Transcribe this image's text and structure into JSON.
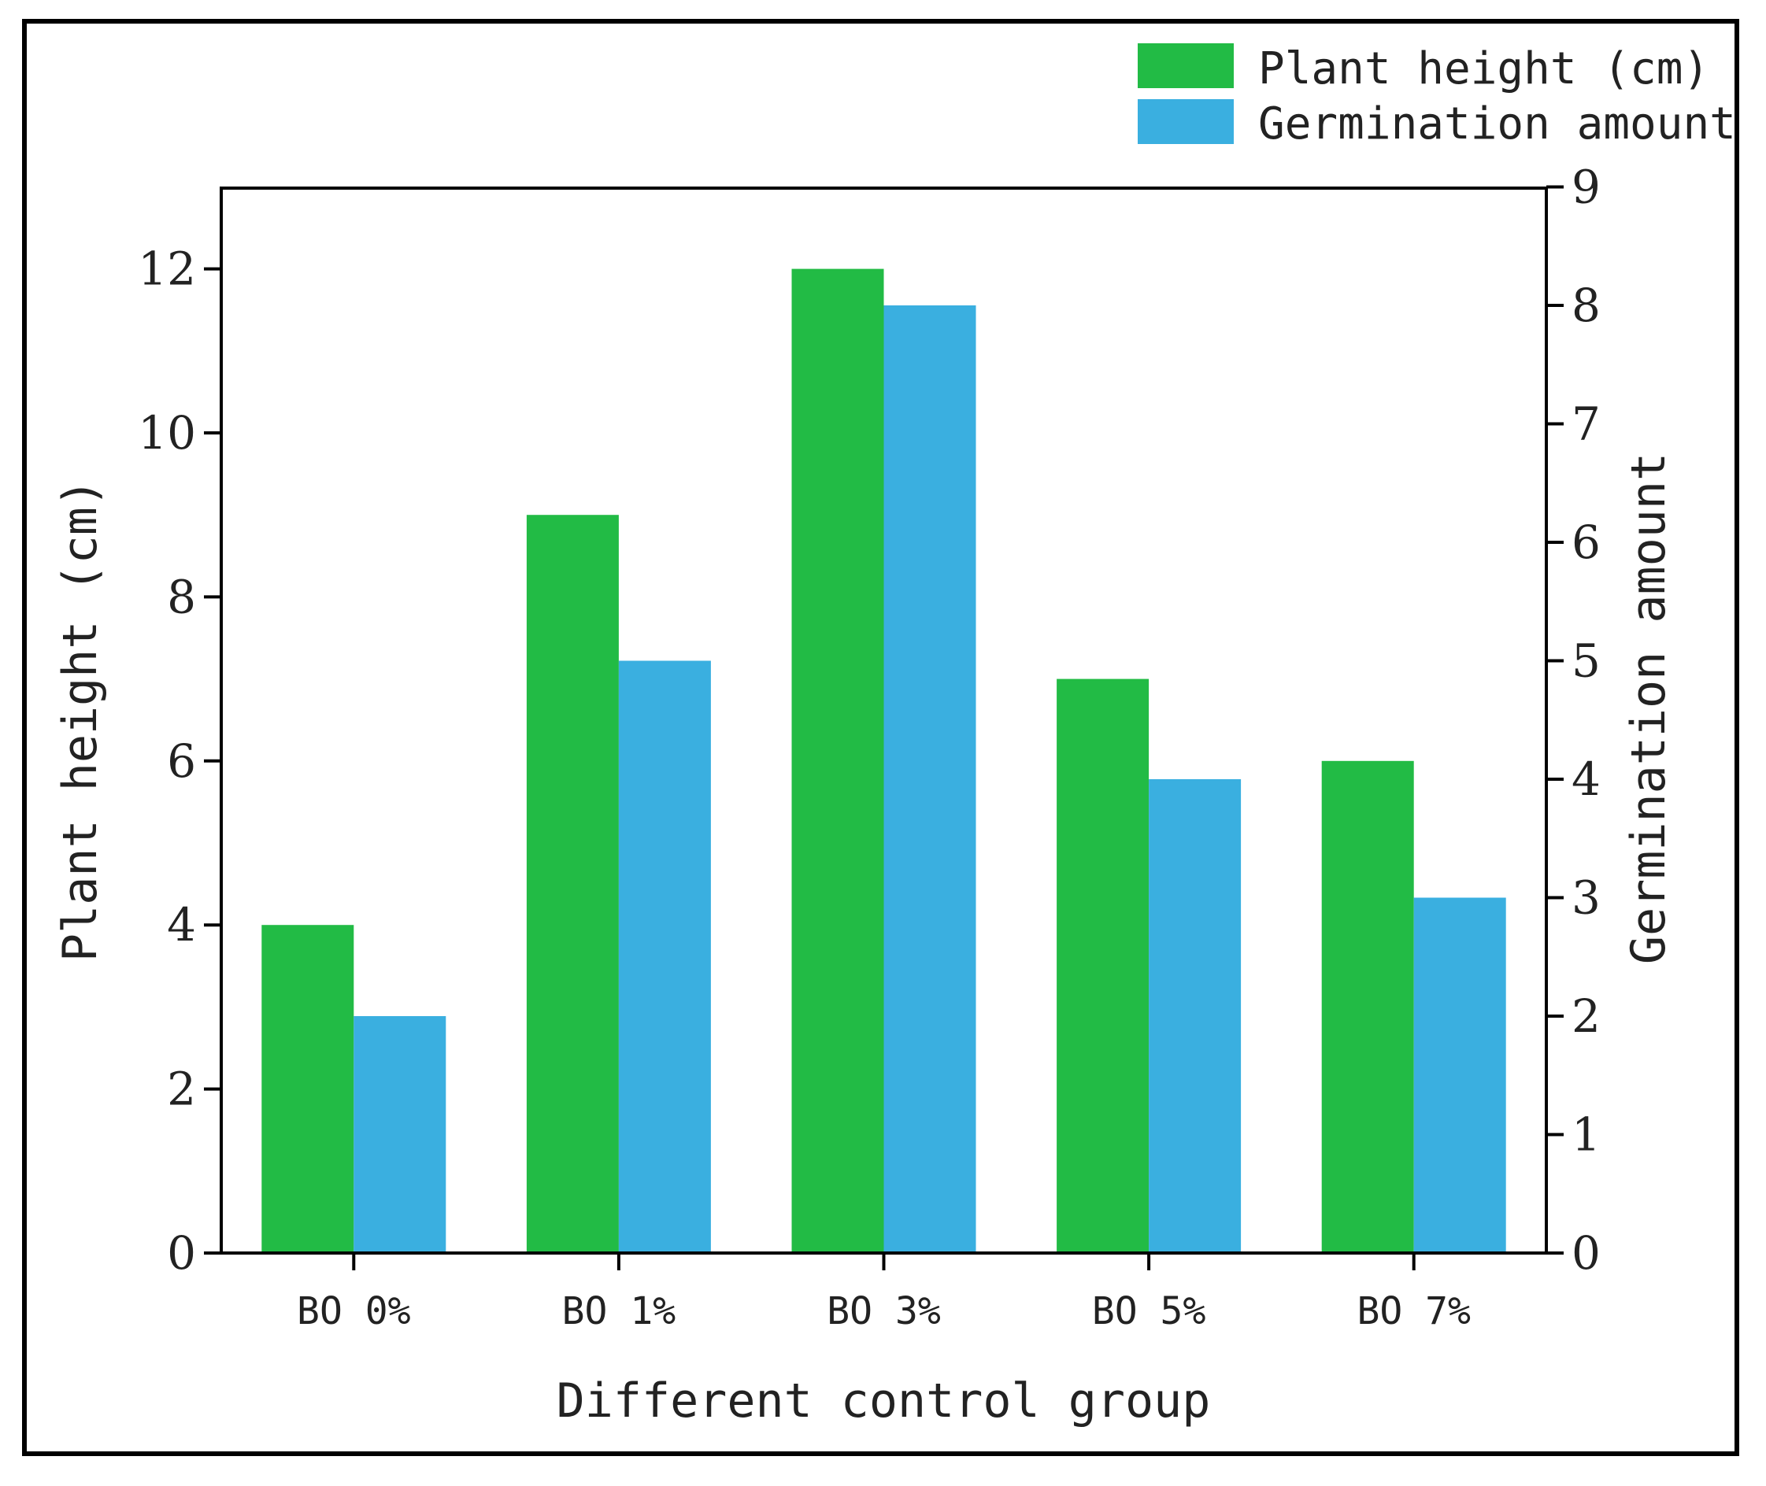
{
  "chart_data": {
    "type": "bar",
    "title": "",
    "xlabel": "Different control group",
    "ylabel_left": "Plant height (cm)",
    "ylabel_right": "Germination amount",
    "categories": [
      "BO 0%",
      "BO 1%",
      "BO 3%",
      "BO 5%",
      "BO 7%"
    ],
    "ylim_left": [
      0,
      13
    ],
    "ylim_right": [
      0,
      9
    ],
    "yticks_left": [
      0,
      2,
      4,
      6,
      8,
      10,
      12
    ],
    "yticks_right": [
      0,
      1,
      2,
      3,
      4,
      5,
      6,
      7,
      8,
      9
    ],
    "legend_position": "top-right",
    "series": [
      {
        "name": "Plant height (cm)",
        "axis": "left",
        "color": "#22bb45",
        "values": [
          4,
          9,
          12,
          7,
          6
        ]
      },
      {
        "name": "Germination amount",
        "axis": "right",
        "color": "#3aafe0",
        "values": [
          2,
          5,
          8,
          4,
          3
        ]
      }
    ]
  }
}
